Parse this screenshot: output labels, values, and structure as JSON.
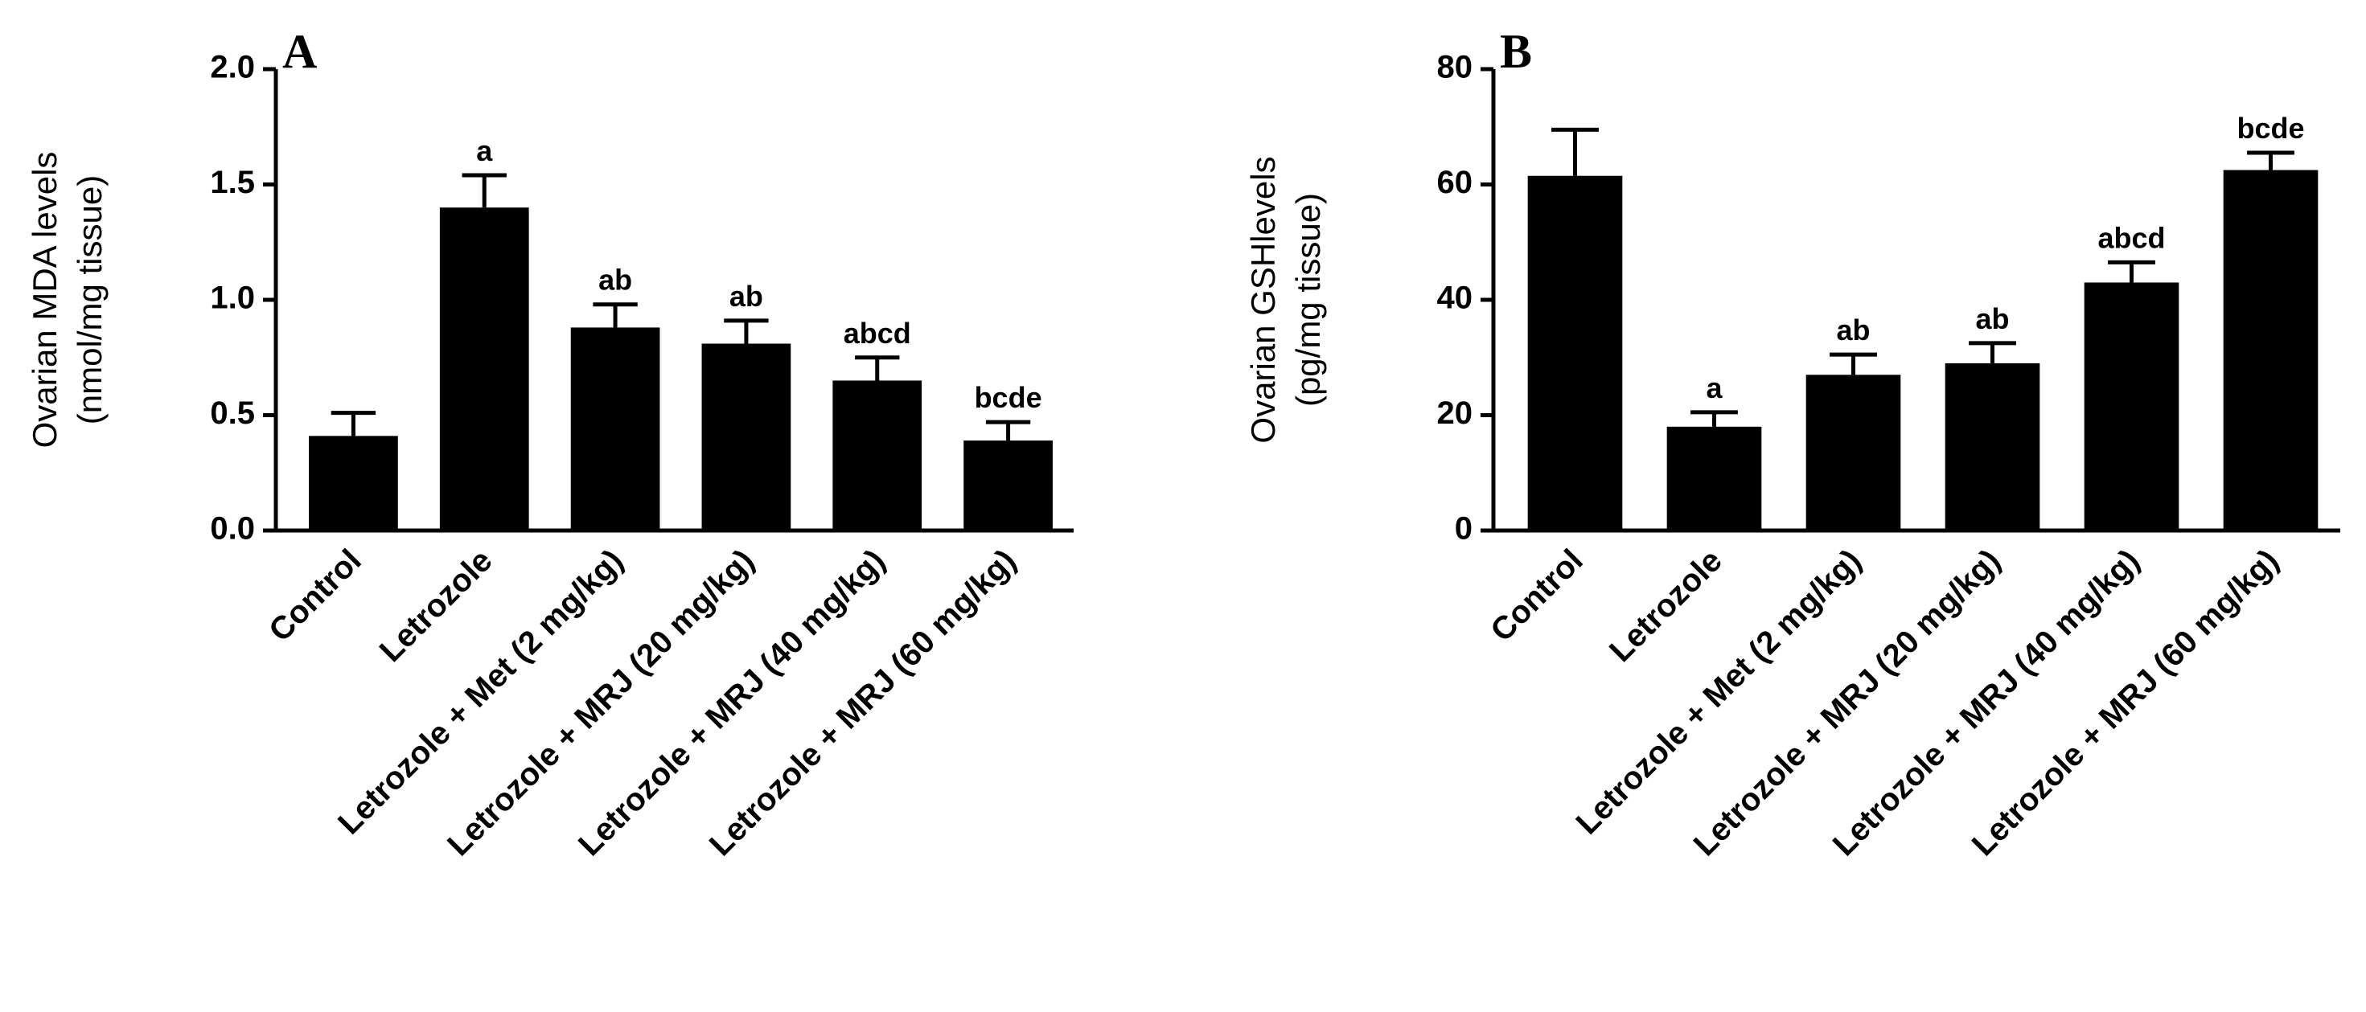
{
  "chart_data": [
    {
      "type": "bar",
      "panel": "A",
      "ylabel": "Ovarian MDA levels",
      "ylabel_unit": "(nmol/mg tissue)",
      "categories": [
        "Control",
        "Letrozole",
        "Letrozole + Met (2 mg/kg)",
        "Letrozole + MRJ (20 mg/kg)",
        "Letrozole + MRJ (40 mg/kg)",
        "Letrozole + MRJ (60 mg/kg)"
      ],
      "values": [
        0.41,
        1.4,
        0.88,
        0.81,
        0.65,
        0.39
      ],
      "errors": [
        0.1,
        0.14,
        0.1,
        0.1,
        0.1,
        0.08
      ],
      "annotations": [
        null,
        "a",
        "ab",
        "ab",
        "abcd",
        "bcde"
      ],
      "color": "#000000",
      "ylim": [
        0,
        2
      ],
      "yticks": [
        {
          "value": 0,
          "label": "0.0"
        },
        0.5,
        {
          "value": 1,
          "label": "1.0"
        },
        1.5,
        {
          "value": 2,
          "label": "2.0"
        }
      ]
    },
    {
      "type": "bar",
      "panel": "B",
      "ylabel": "Ovarian GSHlevels",
      "ylabel_unit": "(pg/mg tissue)",
      "categories": [
        "Control",
        "Letrozole",
        "Letrozole + Met (2 mg/kg)",
        "Letrozole + MRJ (20 mg/kg)",
        "Letrozole + MRJ (40 mg/kg)",
        "Letrozole + MRJ (60 mg/kg)"
      ],
      "values": [
        61.5,
        18,
        27,
        29,
        43,
        62.5
      ],
      "errors": [
        8,
        2.5,
        3.5,
        3.5,
        3.5,
        3
      ],
      "annotations": [
        null,
        "a",
        "ab",
        "ab",
        "abcd",
        "bcde"
      ],
      "color": "#000000",
      "ylim": [
        0,
        80
      ],
      "yticks": [
        0,
        20,
        40,
        60,
        80
      ]
    }
  ]
}
